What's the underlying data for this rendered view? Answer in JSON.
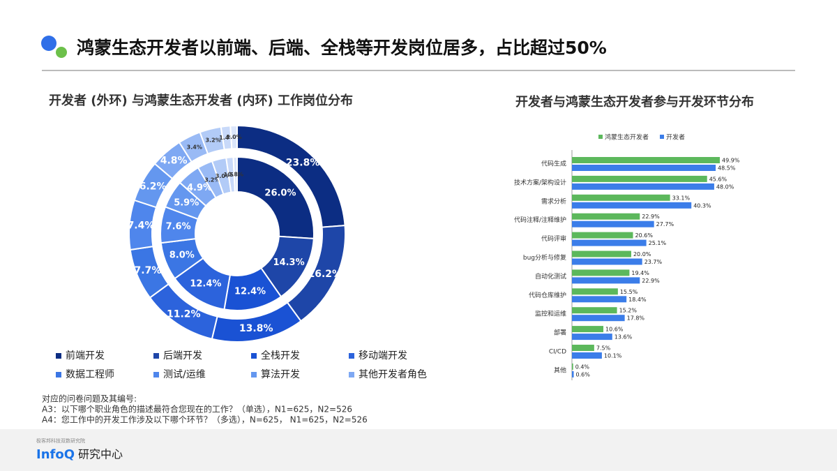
{
  "title": "鸿蒙生态开发者以前端、后端、全栈等开发岗位居多，占比超过50%",
  "chart_data": [
    {
      "type": "donut",
      "title": "开发者 (外环) 与鸿蒙生态开发者 (内环) 工作岗位分布",
      "categories": [
        "前端开发",
        "后端开发",
        "全栈开发",
        "移动端开发",
        "数据工程师",
        "测试/运维",
        "算法开发",
        "其他开发者角色",
        null,
        null,
        null,
        null
      ],
      "colors": [
        "#0c2d83",
        "#1e46a8",
        "#1a52d4",
        "#2c63dc",
        "#3b76e4",
        "#4f86ec",
        "#6497ef",
        "#7ea8f3",
        "#99baf5",
        "#b2cbf7",
        "#c8d9f9",
        "#dbe6fb"
      ],
      "series": [
        {
          "values": [
            23.8,
            16.2,
            13.8,
            11.2,
            7.7,
            7.4,
            6.2,
            4.8,
            3.4,
            3.2,
            1.4,
            1.0
          ],
          "value_labels": [
            "23.8%",
            "16.2%",
            "13.8%",
            "11.2%",
            "7.7%",
            "7.4%",
            "6.2%",
            "4.8%",
            "3.4%",
            "3.2%",
            "1.4%",
            "1.0%"
          ]
        },
        {
          "values": [
            26.0,
            14.3,
            12.4,
            12.4,
            8.0,
            7.6,
            5.9,
            4.9,
            3.2,
            3.0,
            1.5,
            0.8
          ],
          "value_labels": [
            "26.0%",
            "14.3%",
            "12.4%",
            "12.4%",
            "8.0%",
            "7.6%",
            "5.9%",
            "4.9%",
            "3.2%",
            "3.0%",
            "1.5%",
            "0.8%"
          ]
        }
      ]
    },
    {
      "type": "bar",
      "orientation": "horizontal",
      "title": "开发者与鸿蒙生态开发者参与开发环节分布",
      "categories": [
        "代码生成",
        "技术方案/架构设计",
        "需求分析",
        "代码注释/注释维护",
        "代码评审",
        "bug分析与修复",
        "自动化测试",
        "代码仓库维护",
        "监控和运维",
        "部署",
        "CI/CD",
        "其他"
      ],
      "series": [
        {
          "name": "鸿蒙生态开发者",
          "color": "#5cb85c",
          "values": [
            49.9,
            45.6,
            33.1,
            22.9,
            20.6,
            20.0,
            19.4,
            15.5,
            15.2,
            10.6,
            7.5,
            0.4
          ],
          "value_labels": [
            "49.9%",
            "45.6%",
            "33.1%",
            "22.9%",
            "20.6%",
            "20.0%",
            "19.4%",
            "15.5%",
            "15.2%",
            "10.6%",
            "7.5%",
            "0.4%"
          ]
        },
        {
          "name": "开发者",
          "color": "#3b7de9",
          "values": [
            48.5,
            48.0,
            40.3,
            27.7,
            25.1,
            23.7,
            22.9,
            18.4,
            17.8,
            13.6,
            10.1,
            0.6
          ],
          "value_labels": [
            "48.5%",
            "48.0%",
            "40.3%",
            "27.7%",
            "25.1%",
            "23.7%",
            "22.9%",
            "18.4%",
            "17.8%",
            "13.6%",
            "10.1%",
            "0.6%"
          ]
        }
      ]
    }
  ],
  "notes": [
    "对应的问卷问题及其编号:",
    "A3：以下哪个职业角色的描述最符合您现在的工作？（单选），N1=625，N2=526",
    "A4：您工作中的开发工作涉及以下哪个环节？（多选），N=625， N1=625，N2=526"
  ],
  "footer": {
    "org": "极客邦科技双数研究院",
    "logo": "InfoQ",
    "logo_suffix": "研究中心"
  }
}
